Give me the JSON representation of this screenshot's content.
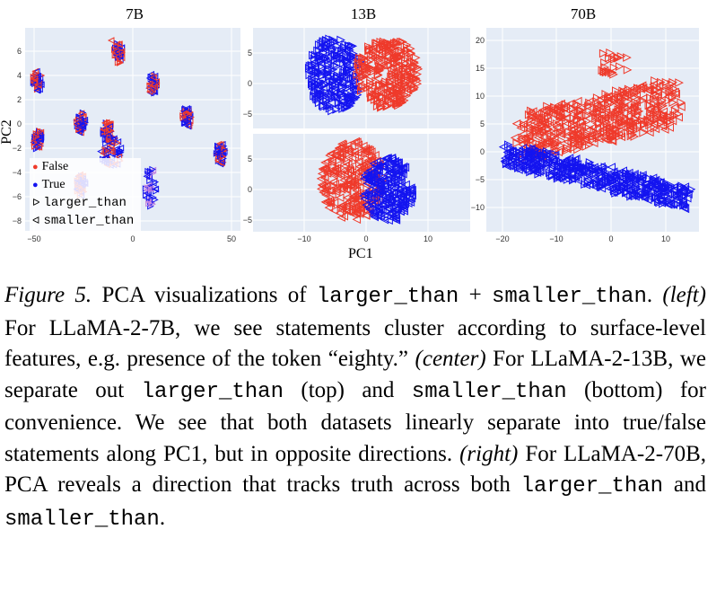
{
  "figure": {
    "panels": [
      {
        "title": "7B",
        "x_ticks": [
          "−50",
          "0",
          "50"
        ],
        "y_ticks": [
          "6",
          "4",
          "2",
          "0",
          "−2",
          "−4",
          "−6",
          "−8"
        ]
      },
      {
        "title": "13B",
        "x_ticks": [
          "−10",
          "0",
          "10"
        ],
        "top_y_ticks": [
          "5",
          "0",
          "−5"
        ],
        "bottom_y_ticks": [
          "5",
          "0",
          "−5"
        ]
      },
      {
        "title": "70B",
        "x_ticks": [
          "−20",
          "−10",
          "0",
          "10"
        ],
        "y_ticks": [
          "20",
          "15",
          "10",
          "5",
          "0",
          "−5",
          "−10"
        ]
      }
    ],
    "xlabel": "PC1",
    "ylabel": "PC2",
    "legend": [
      {
        "marker": "●",
        "label": "False",
        "color": "#ef3a2b"
      },
      {
        "marker": "●",
        "label": "True",
        "color": "#1414f0"
      },
      {
        "marker": "ᐅ",
        "label": "larger_than",
        "color": "#222222"
      },
      {
        "marker": "ᐊ",
        "label": "smaller_than",
        "color": "#222222"
      }
    ]
  },
  "caption": {
    "fig_label": "Figure 5.",
    "t1": " PCA visualizations of ",
    "code1": "larger_than",
    "t2": " + ",
    "code2": "smaller_than",
    "t3": ".  ",
    "left": "(left)",
    "t4": " For LLaMA-2-7B, we see statements cluster according to surface-level features, e.g. presence of the token “eighty.” ",
    "center": "(center)",
    "t5": " For LLaMA-2-13B, we separate out ",
    "code3": "larger_than",
    "t6": " (top) and ",
    "code4": "smaller_than",
    "t7": " (bottom) for convenience. We see that both datasets linearly separate into true/false statements along PC1, but in opposite directions. ",
    "right": "(right)",
    "t8": " For LLaMA-2-70B, PCA reveals a direction that tracks truth across both ",
    "code5": "larger_than",
    "t9": " and ",
    "code6": "smaller_than",
    "t10": "."
  },
  "colors": {
    "false": "#ef3a2b",
    "true": "#1414f0",
    "plot_bg": "#e5ecf6"
  }
}
